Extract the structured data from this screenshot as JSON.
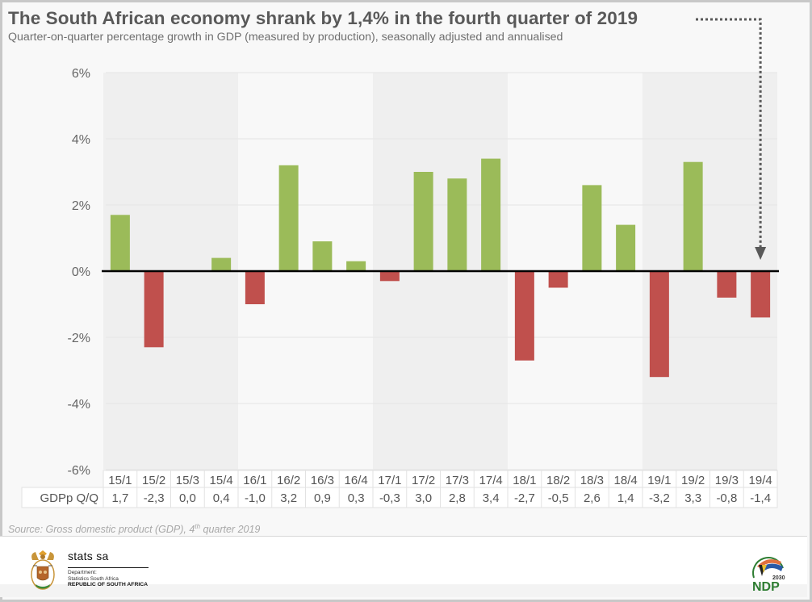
{
  "header": {
    "title": "The South African economy shrank by 1,4% in the fourth quarter of 2019",
    "subtitle": "Quarter-on-quarter percentage growth in GDP (measured by production), seasonally adjusted and annualised"
  },
  "chart_data": {
    "type": "bar",
    "title": "The South African economy shrank by 1,4% in the fourth quarter of 2019",
    "subtitle": "Quarter-on-quarter percentage growth in GDP (measured by production), seasonally adjusted and annualised",
    "xlabel": "",
    "ylabel": "",
    "ylim": [
      -6,
      6
    ],
    "yticks": [
      6,
      4,
      2,
      0,
      -2,
      -4,
      -6
    ],
    "ytick_labels": [
      "6%",
      "4%",
      "2%",
      "0%",
      "-2%",
      "-4%",
      "-6%"
    ],
    "categories": [
      "15/1",
      "15/2",
      "15/3",
      "15/4",
      "16/1",
      "16/2",
      "16/3",
      "16/4",
      "17/1",
      "17/2",
      "17/3",
      "17/4",
      "18/1",
      "18/2",
      "18/3",
      "18/4",
      "19/1",
      "19/2",
      "19/3",
      "19/4"
    ],
    "series": [
      {
        "name": "GDPp Q/Q",
        "values": [
          1.7,
          -2.3,
          0.0,
          0.4,
          -1.0,
          3.2,
          0.9,
          0.3,
          -0.3,
          3.0,
          2.8,
          3.4,
          -2.7,
          -0.5,
          2.6,
          1.4,
          -3.2,
          3.3,
          -0.8,
          -1.4
        ],
        "value_labels": [
          "1,7",
          "-2,3",
          "0,0",
          "0,4",
          "-1,0",
          "3,2",
          "0,9",
          "0,3",
          "-0,3",
          "3,0",
          "2,8",
          "3,4",
          "-2,7",
          "-0,5",
          "2,6",
          "1,4",
          "-3,2",
          "3,3",
          "-0,8",
          "-1,4"
        ]
      }
    ],
    "positive_color": "#9bbb59",
    "negative_color": "#c0504d",
    "band_shaded_color": "#efefef",
    "band_plain_color": "#f8f8f8",
    "shaded_years": [
      "15",
      "17",
      "19"
    ],
    "grid": true,
    "legend": "none",
    "data_table": {
      "row_label": "GDPp Q/Q"
    },
    "annotation": {
      "text": "dotted arrow from title to 19/4 bar",
      "target": "19/4"
    }
  },
  "source": {
    "prefix": "Source: Gross domestic product (GDP), 4",
    "sup": "th",
    "suffix": " quarter 2019"
  },
  "footer": {
    "org_name": "stats sa",
    "dept_line1": "Department:",
    "dept_line2": "Statistics South Africa",
    "dept_line3": "REPUBLIC OF SOUTH AFRICA",
    "ndp_year": "2030",
    "ndp_text": "NDP"
  }
}
